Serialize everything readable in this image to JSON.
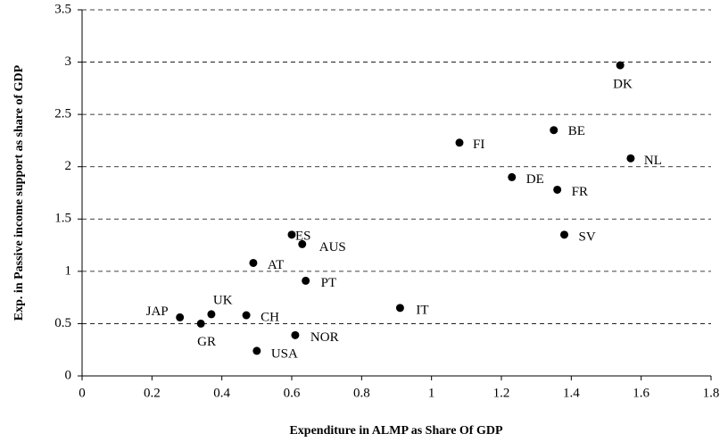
{
  "chart_data": {
    "type": "scatter",
    "xlabel": "Expenditure in ALMP as Share Of GDP",
    "ylabel": "Exp. in Passive income support as share of GDP",
    "labels": [
      "DK",
      "BE",
      "NL",
      "FI",
      "DE",
      "FR",
      "SV",
      "ES",
      "AUS",
      "AT",
      "PT",
      "IT",
      "UK",
      "CH",
      "JAP",
      "GR",
      "NOR",
      "USA"
    ],
    "x": [
      1.54,
      1.35,
      1.57,
      1.08,
      1.23,
      1.36,
      1.38,
      0.6,
      0.63,
      0.49,
      0.64,
      0.91,
      0.37,
      0.47,
      0.28,
      0.34,
      0.61,
      0.5
    ],
    "y": [
      2.97,
      2.35,
      2.08,
      2.23,
      1.9,
      1.78,
      1.35,
      1.35,
      1.26,
      1.08,
      0.91,
      0.65,
      0.59,
      0.58,
      0.56,
      0.5,
      0.39,
      0.24
    ],
    "color": "#000000",
    "xlim": [
      0,
      1.8
    ],
    "xticks": [
      0,
      0.2,
      0.4,
      0.6,
      0.8,
      1,
      1.2,
      1.4,
      1.6,
      1.8
    ],
    "ylim": [
      0,
      3.5
    ],
    "yticks": [
      0,
      0.5,
      1,
      1.5,
      2,
      2.5,
      3,
      3.5
    ],
    "grid": true
  }
}
